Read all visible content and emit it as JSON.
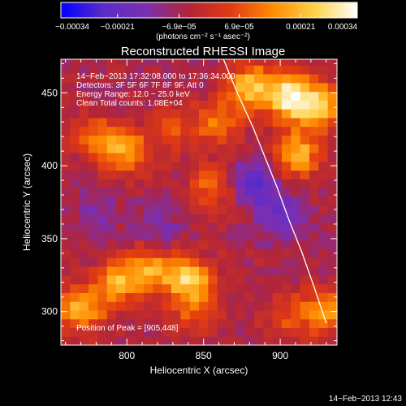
{
  "colors": {
    "background": "#000000",
    "foreground": "#ffffff",
    "limb": "#ffffff",
    "colormap_stops": [
      "#0000ff",
      "#5a2cc8",
      "#7b2fb3",
      "#b0253b",
      "#e13a12",
      "#ff8a00",
      "#ffd24a",
      "#ffffff"
    ]
  },
  "colorbar": {
    "tick_labels": [
      "−0.00034",
      "−0.00021",
      "−6.9e−05",
      "6.9e−05",
      "0.00021",
      "0.00034"
    ],
    "tick_values": [
      -0.00034,
      -0.00021,
      -6.9e-05,
      6.9e-05,
      0.00021,
      0.00034
    ],
    "range": [
      -0.00034,
      0.00034
    ],
    "units": "(photons cm⁻² s⁻¹ asec⁻²)"
  },
  "plot": {
    "title": "Reconstructed RHESSI Image",
    "annotations": [
      "14−Feb−2013 17:32:08.000 to 17:36:34.000",
      "Detectors: 3F 5F 6F 7F 8F 9F, Att 0",
      "Energy Range: 12.0 − 25.0 keV",
      "Clean     Total counts: 1.08E+04"
    ],
    "peak_label": "Position of Peak = [905,448]",
    "footer_timestamp": "14−Feb−2013 12:43"
  },
  "chart_data": {
    "type": "heatmap",
    "title": "Reconstructed RHESSI Image",
    "xlabel": "Heliocentric X (arcsec)",
    "ylabel": "Heliocentric Y (arcsec)",
    "xlim": [
      757,
      937
    ],
    "ylim": [
      277,
      473
    ],
    "x_ticks": [
      800,
      850,
      900
    ],
    "y_ticks": [
      300,
      350,
      400,
      450
    ],
    "grid": false,
    "value_range": [
      -0.00034,
      0.00034
    ],
    "peak_position": [
      905,
      448
    ],
    "limb_curve": {
      "x": [
        863,
        872,
        882,
        890,
        898,
        906,
        914,
        922,
        930
      ],
      "y": [
        473,
        450,
        427,
        406,
        385,
        362,
        341,
        317,
        292
      ]
    },
    "bright_regions": [
      {
        "x": 770,
        "y": 302,
        "value": 0.00026
      },
      {
        "x": 795,
        "y": 320,
        "value": 0.00023
      },
      {
        "x": 815,
        "y": 330,
        "value": 0.00021
      },
      {
        "x": 840,
        "y": 322,
        "value": 0.00029
      },
      {
        "x": 780,
        "y": 420,
        "value": 0.00016
      },
      {
        "x": 800,
        "y": 410,
        "value": 0.00022
      },
      {
        "x": 830,
        "y": 425,
        "value": 0.00012
      },
      {
        "x": 855,
        "y": 385,
        "value": 0.00015
      },
      {
        "x": 860,
        "y": 430,
        "value": 0.00018
      },
      {
        "x": 880,
        "y": 455,
        "value": 0.00026
      },
      {
        "x": 905,
        "y": 448,
        "value": 0.00034
      },
      {
        "x": 910,
        "y": 408,
        "value": 0.00027
      },
      {
        "x": 925,
        "y": 440,
        "value": 0.0003
      },
      {
        "x": 930,
        "y": 300,
        "value": 0.0002
      },
      {
        "x": 905,
        "y": 297,
        "value": 0.00012
      },
      {
        "x": 845,
        "y": 300,
        "value": 0.00013
      }
    ],
    "dark_regions": [
      {
        "x": 885,
        "y": 390,
        "value": -0.00018
      },
      {
        "x": 900,
        "y": 365,
        "value": -0.00012
      },
      {
        "x": 820,
        "y": 358,
        "value": -9e-05
      },
      {
        "x": 780,
        "y": 370,
        "value": -6e-05
      }
    ]
  }
}
